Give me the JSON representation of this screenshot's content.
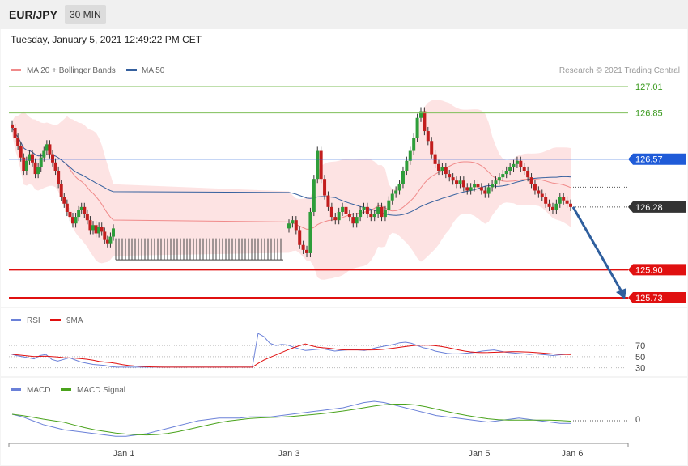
{
  "header": {
    "symbol": "EUR/JPY",
    "timeframe": "30 MIN"
  },
  "timestamp": "Tuesday, January 5, 2021 12:49:22 PM CET",
  "credit": "Research © 2021 Trading Central",
  "colors": {
    "up": "#2e9e3a",
    "down": "#c21e1e",
    "ma20": "#f08a8a",
    "band": "#fde0e0",
    "ma50": "#35609e",
    "support": "#e01010",
    "resistance": "#1f5bd8",
    "target": "#7fbf5a",
    "current": "#333333",
    "arrow": "#2f5f9e",
    "rsi": "#6a80d8",
    "rsi_ma": "#e01010",
    "macd": "#6a80d8",
    "signal": "#4aa31c"
  },
  "chart_data": [
    {
      "type": "candlestick",
      "title": "EUR/JPY",
      "legend": [
        {
          "name": "MA 20 + Bollinger Bands",
          "color": "#f08a8a"
        },
        {
          "name": "MA 50",
          "color": "#35609e"
        }
      ],
      "x_ticks": [
        "Jan 1",
        "Jan 3",
        "Jan 5",
        "Jan 6"
      ],
      "ylim": [
        125.65,
        127.1
      ],
      "levels": [
        {
          "value": 127.01,
          "label": "127.01",
          "kind": "target"
        },
        {
          "value": 126.85,
          "label": "126.85",
          "kind": "target"
        },
        {
          "value": 126.57,
          "label": "126.57",
          "kind": "resistance"
        },
        {
          "value": 126.28,
          "label": "126.28",
          "kind": "current"
        },
        {
          "value": 125.9,
          "label": "125.90",
          "kind": "support"
        },
        {
          "value": 125.73,
          "label": "125.73",
          "kind": "support"
        }
      ],
      "forecast_arrow": {
        "from": 126.28,
        "to": 125.73
      },
      "closes": [
        126.76,
        126.7,
        126.65,
        126.58,
        126.5,
        126.56,
        126.6,
        126.55,
        126.48,
        126.52,
        126.58,
        126.62,
        126.66,
        126.6,
        126.55,
        126.5,
        126.42,
        126.34,
        126.3,
        126.25,
        126.22,
        126.18,
        126.22,
        126.26,
        126.28,
        126.24,
        126.2,
        126.14,
        126.17,
        126.12,
        126.16,
        126.13,
        126.08,
        126.06,
        126.1,
        126.15,
        126.18,
        126.2,
        126.14,
        126.05,
        126.02,
        126.0,
        126.25,
        126.45,
        126.62,
        126.45,
        126.35,
        126.28,
        126.22,
        126.2,
        126.25,
        126.28,
        126.24,
        126.22,
        126.18,
        126.22,
        126.26,
        126.28,
        126.24,
        126.22,
        126.24,
        126.28,
        126.22,
        126.26,
        126.32,
        126.36,
        126.38,
        126.42,
        126.5,
        126.56,
        126.62,
        126.7,
        126.82,
        126.86,
        126.74,
        126.68,
        126.6,
        126.54,
        126.5,
        126.52,
        126.48,
        126.46,
        126.44,
        126.42,
        126.44,
        126.4,
        126.38,
        126.4,
        126.42,
        126.4,
        126.38,
        126.36,
        126.4,
        126.42,
        126.44,
        126.46,
        126.48,
        126.5,
        126.52,
        126.54,
        126.56,
        126.52,
        126.5,
        126.46,
        126.42,
        126.38,
        126.36,
        126.34,
        126.3,
        126.28,
        126.26,
        126.3,
        126.34,
        126.32,
        126.3,
        126.28
      ]
    },
    {
      "type": "line",
      "series": [
        {
          "name": "RSI"
        },
        {
          "name": "9MA"
        }
      ],
      "y_ticks": [
        70,
        50,
        30
      ],
      "rsi": [
        55,
        52,
        50,
        48,
        46,
        52,
        54,
        45,
        42,
        45,
        48,
        44,
        40,
        38,
        36,
        35,
        34,
        32,
        31,
        31,
        31,
        31,
        31,
        31,
        31,
        31,
        31,
        31,
        31,
        31,
        31,
        31,
        31,
        31,
        31,
        31,
        31,
        31,
        31,
        31,
        31,
        31,
        92,
        86,
        74,
        70,
        72,
        71,
        67,
        64,
        61,
        62,
        63,
        64,
        62,
        60,
        61,
        62,
        63,
        62,
        61,
        63,
        66,
        68,
        70,
        72,
        75,
        76,
        74,
        70,
        66,
        64,
        60,
        58,
        56,
        55,
        55,
        56,
        57,
        58,
        60,
        61,
        62,
        60,
        58,
        57,
        56,
        55,
        54,
        55,
        54,
        53,
        52,
        53,
        54,
        55
      ]
    },
    {
      "type": "line",
      "series": [
        {
          "name": "MACD"
        },
        {
          "name": "MACD Signal"
        }
      ],
      "y_ticks": [
        0
      ],
      "macd": [
        0.05,
        0.03,
        0.0,
        -0.03,
        -0.05,
        -0.07,
        -0.08,
        -0.09,
        -0.1,
        -0.11,
        -0.12,
        -0.12,
        -0.11,
        -0.1,
        -0.08,
        -0.06,
        -0.04,
        -0.02,
        0.0,
        0.01,
        0.02,
        0.02,
        0.02,
        0.03,
        0.03,
        0.03,
        0.04,
        0.05,
        0.06,
        0.07,
        0.08,
        0.09,
        0.1,
        0.12,
        0.14,
        0.15,
        0.14,
        0.12,
        0.1,
        0.08,
        0.06,
        0.04,
        0.03,
        0.02,
        0.01,
        0.0,
        -0.01,
        0.0,
        0.01,
        0.02,
        0.01,
        0.0,
        -0.01,
        -0.02,
        -0.02
      ]
    }
  ]
}
